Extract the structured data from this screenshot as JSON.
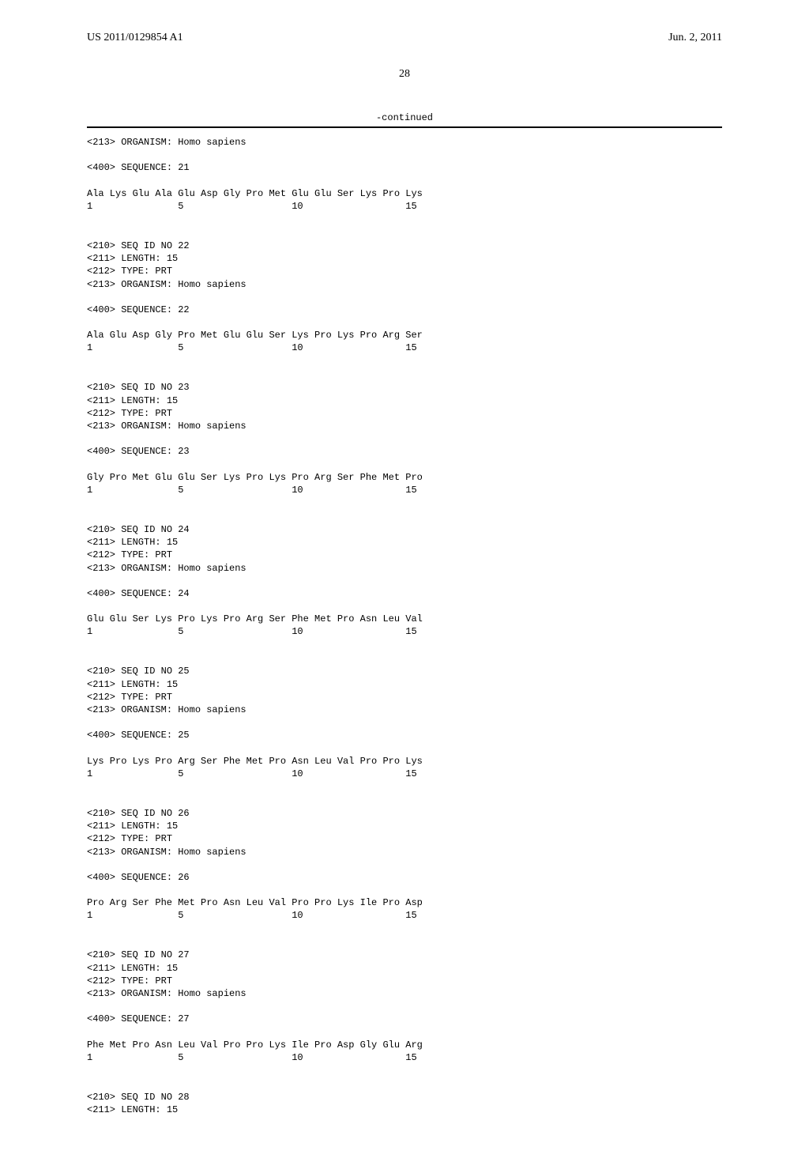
{
  "header": {
    "pub_number": "US 2011/0129854 A1",
    "pub_date": "Jun. 2, 2011"
  },
  "page_number": "28",
  "continued_label": "-continued",
  "col_positions_ch": [
    0,
    4,
    8,
    12,
    16,
    20,
    24,
    28,
    32,
    36,
    40,
    44,
    48,
    52,
    56
  ],
  "num_positions_ch": {
    "1": 0,
    "5": 16,
    "10": 36,
    "15": 56
  },
  "entries": [
    {
      "pre_lines": [
        "<213> ORGANISM: Homo sapiens"
      ],
      "seq_line": "<400> SEQUENCE: 21",
      "residues": [
        "Ala",
        "Lys",
        "Glu",
        "Ala",
        "Glu",
        "Asp",
        "Gly",
        "Pro",
        "Met",
        "Glu",
        "Glu",
        "Ser",
        "Lys",
        "Pro",
        "Lys"
      ],
      "numbers": [
        "1",
        "5",
        "10",
        "15"
      ]
    },
    {
      "pre_lines": [
        "<210> SEQ ID NO 22",
        "<211> LENGTH: 15",
        "<212> TYPE: PRT",
        "<213> ORGANISM: Homo sapiens"
      ],
      "seq_line": "<400> SEQUENCE: 22",
      "residues": [
        "Ala",
        "Glu",
        "Asp",
        "Gly",
        "Pro",
        "Met",
        "Glu",
        "Glu",
        "Ser",
        "Lys",
        "Pro",
        "Lys",
        "Pro",
        "Arg",
        "Ser"
      ],
      "numbers": [
        "1",
        "5",
        "10",
        "15"
      ]
    },
    {
      "pre_lines": [
        "<210> SEQ ID NO 23",
        "<211> LENGTH: 15",
        "<212> TYPE: PRT",
        "<213> ORGANISM: Homo sapiens"
      ],
      "seq_line": "<400> SEQUENCE: 23",
      "residues": [
        "Gly",
        "Pro",
        "Met",
        "Glu",
        "Glu",
        "Ser",
        "Lys",
        "Pro",
        "Lys",
        "Pro",
        "Arg",
        "Ser",
        "Phe",
        "Met",
        "Pro"
      ],
      "numbers": [
        "1",
        "5",
        "10",
        "15"
      ]
    },
    {
      "pre_lines": [
        "<210> SEQ ID NO 24",
        "<211> LENGTH: 15",
        "<212> TYPE: PRT",
        "<213> ORGANISM: Homo sapiens"
      ],
      "seq_line": "<400> SEQUENCE: 24",
      "residues": [
        "Glu",
        "Glu",
        "Ser",
        "Lys",
        "Pro",
        "Lys",
        "Pro",
        "Arg",
        "Ser",
        "Phe",
        "Met",
        "Pro",
        "Asn",
        "Leu",
        "Val"
      ],
      "numbers": [
        "1",
        "5",
        "10",
        "15"
      ]
    },
    {
      "pre_lines": [
        "<210> SEQ ID NO 25",
        "<211> LENGTH: 15",
        "<212> TYPE: PRT",
        "<213> ORGANISM: Homo sapiens"
      ],
      "seq_line": "<400> SEQUENCE: 25",
      "residues": [
        "Lys",
        "Pro",
        "Lys",
        "Pro",
        "Arg",
        "Ser",
        "Phe",
        "Met",
        "Pro",
        "Asn",
        "Leu",
        "Val",
        "Pro",
        "Pro",
        "Lys"
      ],
      "numbers": [
        "1",
        "5",
        "10",
        "15"
      ]
    },
    {
      "pre_lines": [
        "<210> SEQ ID NO 26",
        "<211> LENGTH: 15",
        "<212> TYPE: PRT",
        "<213> ORGANISM: Homo sapiens"
      ],
      "seq_line": "<400> SEQUENCE: 26",
      "residues": [
        "Pro",
        "Arg",
        "Ser",
        "Phe",
        "Met",
        "Pro",
        "Asn",
        "Leu",
        "Val",
        "Pro",
        "Pro",
        "Lys",
        "Ile",
        "Pro",
        "Asp"
      ],
      "numbers": [
        "1",
        "5",
        "10",
        "15"
      ]
    },
    {
      "pre_lines": [
        "<210> SEQ ID NO 27",
        "<211> LENGTH: 15",
        "<212> TYPE: PRT",
        "<213> ORGANISM: Homo sapiens"
      ],
      "seq_line": "<400> SEQUENCE: 27",
      "residues": [
        "Phe",
        "Met",
        "Pro",
        "Asn",
        "Leu",
        "Val",
        "Pro",
        "Pro",
        "Lys",
        "Ile",
        "Pro",
        "Asp",
        "Gly",
        "Glu",
        "Arg"
      ],
      "numbers": [
        "1",
        "5",
        "10",
        "15"
      ]
    },
    {
      "pre_lines": [
        "<210> SEQ ID NO 28",
        "<211> LENGTH: 15"
      ],
      "seq_line": null,
      "residues": null,
      "numbers": null
    }
  ]
}
